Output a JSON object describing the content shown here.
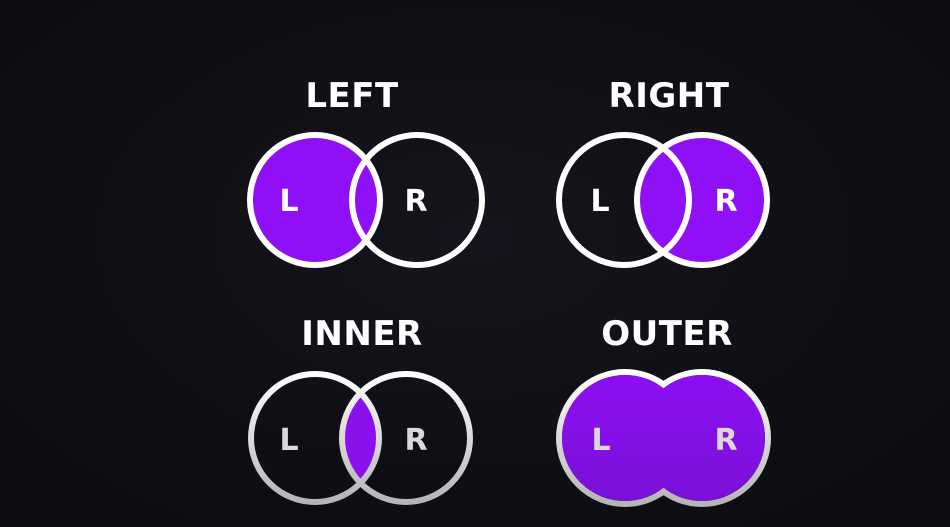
{
  "colors": {
    "background": "#0e0d13",
    "fill": "#8a10ef",
    "outline": "#ffffff",
    "outline_faded": "#c9c9cb",
    "text": "#ffffff"
  },
  "panels": [
    {
      "id": "left",
      "title": "LEFT",
      "left_label": "L",
      "right_label": "R",
      "fill": "left"
    },
    {
      "id": "right",
      "title": "RIGHT",
      "left_label": "L",
      "right_label": "R",
      "fill": "right"
    },
    {
      "id": "inner",
      "title": "INNER",
      "left_label": "L",
      "right_label": "R",
      "fill": "inner"
    },
    {
      "id": "outer",
      "title": "OUTER",
      "left_label": "L",
      "right_label": "R",
      "fill": "outer"
    }
  ]
}
